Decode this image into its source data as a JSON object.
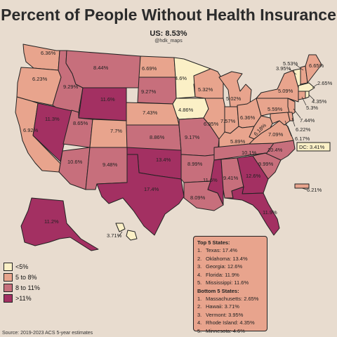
{
  "title": "Percent of People Without Health Insurance",
  "us_total": "US: 8.53%",
  "credit": "@hdk_maps",
  "source": "Source: 2019-2023 ACS 5-year estimates",
  "colors": {
    "lt5": "#fbf0c6",
    "5to8": "#e8a48d",
    "8to11": "#c76f7c",
    "gt11": "#a33062",
    "border": "#222222",
    "background": "#e8dccf"
  },
  "legend": [
    {
      "label": "<5%",
      "color": "#fbf0c6"
    },
    {
      "label": "5 to 8%",
      "color": "#e8a48d"
    },
    {
      "label": "8 to 11%",
      "color": "#c76f7c"
    },
    {
      "label": ">11%",
      "color": "#a33062"
    }
  ],
  "top5": {
    "heading": "Top 5 States:",
    "items": [
      {
        "num": "1.",
        "text": "Texas: 17.4%"
      },
      {
        "num": "2.",
        "text": "Oklahoma: 13.4%"
      },
      {
        "num": "3.",
        "text": "Georgia: 12.6%"
      },
      {
        "num": "4.",
        "text": "Florida: 11.9%"
      },
      {
        "num": "5.",
        "text": "Mississippi: 11.6%"
      }
    ]
  },
  "bottom5": {
    "heading": "Bottom 5 States:",
    "items": [
      {
        "num": "1.",
        "text": "Massachusetts: 2.65%"
      },
      {
        "num": "2.",
        "text": "Hawaii: 3.71%"
      },
      {
        "num": "3.",
        "text": "Vermont: 3.95%"
      },
      {
        "num": "4.",
        "text": "Rhode Island: 4.35%"
      },
      {
        "num": "5.",
        "text": "Minnesota: 4.6%"
      }
    ]
  },
  "states": {
    "WA": "6.36%",
    "OR": "6.23%",
    "CA": "6.92%",
    "NV": "11.3%",
    "ID": "9.29%",
    "MT": "8.44%",
    "WY": "11.6%",
    "UT": "8.65%",
    "AZ": "10.6%",
    "CO": "7.7%",
    "NM": "9.48%",
    "ND": "6.69%",
    "SD": "9.27%",
    "NE": "7.43%",
    "KS": "8.86%",
    "OK": "13.4%",
    "TX": "17.4%",
    "MN": "4.6%",
    "IA": "4.86%",
    "MO": "9.17%",
    "AR": "8.99%",
    "LA": "8.09%",
    "WI": "5.32%",
    "IL": "6.95%",
    "MI": "5.02%",
    "IN": "7.57%",
    "OH": "6.36%",
    "KY": "5.89%",
    "TN": "10.1%",
    "MS": "11.6%",
    "AL": "9.41%",
    "GA": "12.6%",
    "FL": "11.9%",
    "SC": "9.99%",
    "NC": "10.4%",
    "VA": "7.09%",
    "WV": "6.18%",
    "PA": "5.59%",
    "NY": "5.09%",
    "ME": "6.65%",
    "NH": "5.53%",
    "VT": "3.95%",
    "MA": "2.65%",
    "RI": "4.35%",
    "CT": "5.3%",
    "NJ": "7.44%",
    "DE": "6.22%",
    "MD": "6.17%",
    "DC": "DC: 3.41%",
    "AK": "11.2%",
    "HI": "3.71%",
    "PR": "6.21%"
  }
}
